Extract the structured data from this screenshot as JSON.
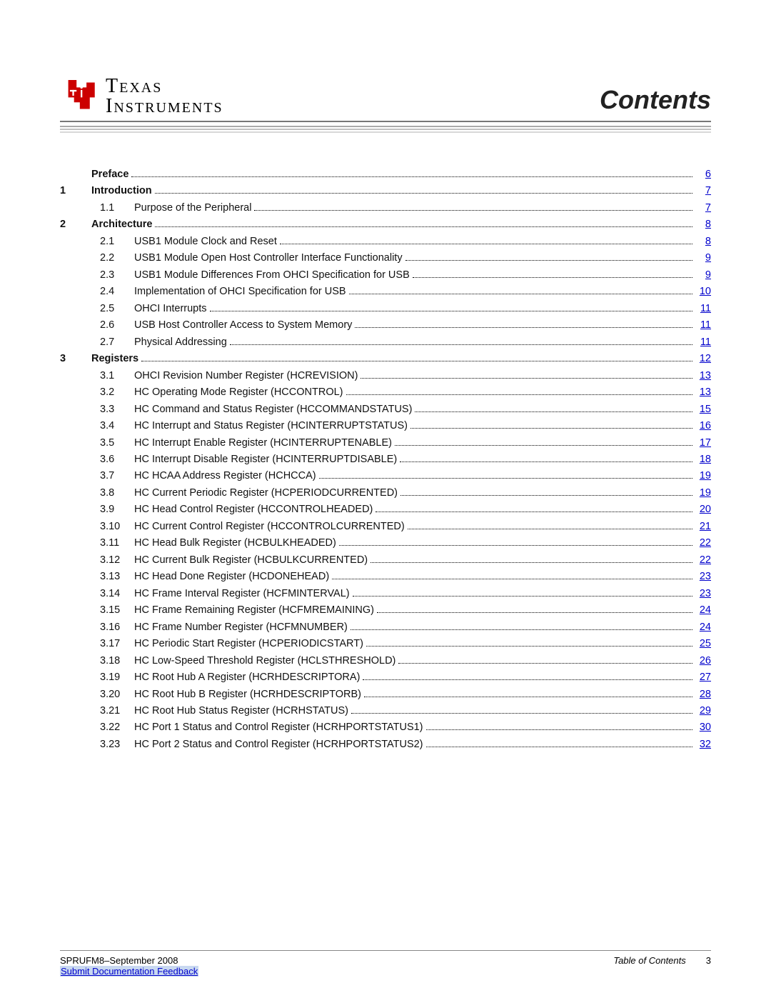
{
  "logo": {
    "texas": "Texas",
    "instruments": "Instruments",
    "icon_color": "#cc0000"
  },
  "title": "Contents",
  "toc": [
    {
      "level": 0,
      "num": "",
      "sub": "",
      "title": "Preface",
      "bold": true,
      "page": "6"
    },
    {
      "level": 0,
      "num": "1",
      "sub": "",
      "title": "Introduction",
      "bold": true,
      "page": "7"
    },
    {
      "level": 1,
      "num": "",
      "sub": "1.1",
      "title": "Purpose of the Peripheral",
      "bold": false,
      "page": "7"
    },
    {
      "level": 0,
      "num": "2",
      "sub": "",
      "title": "Architecture",
      "bold": true,
      "page": "8"
    },
    {
      "level": 1,
      "num": "",
      "sub": "2.1",
      "title": "USB1 Module Clock and Reset",
      "bold": false,
      "page": "8"
    },
    {
      "level": 1,
      "num": "",
      "sub": "2.2",
      "title": "USB1 Module Open Host Controller Interface Functionality",
      "bold": false,
      "page": "9"
    },
    {
      "level": 1,
      "num": "",
      "sub": "2.3",
      "title": "USB1 Module Differences From OHCI Specification for USB",
      "bold": false,
      "page": "9"
    },
    {
      "level": 1,
      "num": "",
      "sub": "2.4",
      "title": "Implementation of OHCI Specification for USB",
      "bold": false,
      "page": "10"
    },
    {
      "level": 1,
      "num": "",
      "sub": "2.5",
      "title": "OHCI Interrupts",
      "bold": false,
      "page": "11"
    },
    {
      "level": 1,
      "num": "",
      "sub": "2.6",
      "title": "USB Host Controller Access to System Memory",
      "bold": false,
      "page": "11"
    },
    {
      "level": 1,
      "num": "",
      "sub": "2.7",
      "title": "Physical Addressing",
      "bold": false,
      "page": "11"
    },
    {
      "level": 0,
      "num": "3",
      "sub": "",
      "title": "Registers",
      "bold": true,
      "page": "12"
    },
    {
      "level": 1,
      "num": "",
      "sub": "3.1",
      "title": "OHCI Revision Number Register (HCREVISION)",
      "bold": false,
      "page": "13"
    },
    {
      "level": 1,
      "num": "",
      "sub": "3.2",
      "title": "HC Operating Mode Register (HCCONTROL)",
      "bold": false,
      "page": "13"
    },
    {
      "level": 1,
      "num": "",
      "sub": "3.3",
      "title": "HC Command and Status Register (HCCOMMANDSTATUS)",
      "bold": false,
      "page": "15"
    },
    {
      "level": 1,
      "num": "",
      "sub": "3.4",
      "title": "HC Interrupt and Status Register (HCINTERRUPTSTATUS)",
      "bold": false,
      "page": "16"
    },
    {
      "level": 1,
      "num": "",
      "sub": "3.5",
      "title": "HC Interrupt Enable Register (HCINTERRUPTENABLE)",
      "bold": false,
      "page": "17"
    },
    {
      "level": 1,
      "num": "",
      "sub": "3.6",
      "title": "HC Interrupt Disable Register (HCINTERRUPTDISABLE)",
      "bold": false,
      "page": "18"
    },
    {
      "level": 1,
      "num": "",
      "sub": "3.7",
      "title": "HC HCAA Address Register (HCHCCA)",
      "bold": false,
      "page": "19"
    },
    {
      "level": 1,
      "num": "",
      "sub": "3.8",
      "title": "HC Current Periodic Register (HCPERIODCURRENTED)",
      "bold": false,
      "page": "19"
    },
    {
      "level": 1,
      "num": "",
      "sub": "3.9",
      "title": "HC Head Control Register (HCCONTROLHEADED)",
      "bold": false,
      "page": "20"
    },
    {
      "level": 1,
      "num": "",
      "sub": "3.10",
      "title": "HC Current Control Register (HCCONTROLCURRENTED)",
      "bold": false,
      "page": "21"
    },
    {
      "level": 1,
      "num": "",
      "sub": "3.11",
      "title": "HC Head Bulk Register (HCBULKHEADED)",
      "bold": false,
      "page": "22"
    },
    {
      "level": 1,
      "num": "",
      "sub": "3.12",
      "title": "HC Current Bulk Register (HCBULKCURRENTED)",
      "bold": false,
      "page": "22"
    },
    {
      "level": 1,
      "num": "",
      "sub": "3.13",
      "title": "HC Head Done Register (HCDONEHEAD)",
      "bold": false,
      "page": "23"
    },
    {
      "level": 1,
      "num": "",
      "sub": "3.14",
      "title": "HC Frame Interval Register (HCFMINTERVAL)",
      "bold": false,
      "page": "23"
    },
    {
      "level": 1,
      "num": "",
      "sub": "3.15",
      "title": "HC Frame Remaining Register (HCFMREMAINING)",
      "bold": false,
      "page": "24"
    },
    {
      "level": 1,
      "num": "",
      "sub": "3.16",
      "title": "HC Frame Number Register (HCFMNUMBER)",
      "bold": false,
      "page": "24"
    },
    {
      "level": 1,
      "num": "",
      "sub": "3.17",
      "title": "HC Periodic Start Register (HCPERIODICSTART)",
      "bold": false,
      "page": "25"
    },
    {
      "level": 1,
      "num": "",
      "sub": "3.18",
      "title": "HC Low-Speed Threshold Register (HCLSTHRESHOLD)",
      "bold": false,
      "page": "26"
    },
    {
      "level": 1,
      "num": "",
      "sub": "3.19",
      "title": "HC Root Hub A Register (HCRHDESCRIPTORA)",
      "bold": false,
      "page": "27"
    },
    {
      "level": 1,
      "num": "",
      "sub": "3.20",
      "title": "HC Root Hub B Register (HCRHDESCRIPTORB)",
      "bold": false,
      "page": "28"
    },
    {
      "level": 1,
      "num": "",
      "sub": "3.21",
      "title": "HC Root Hub Status Register (HCRHSTATUS)",
      "bold": false,
      "page": "29"
    },
    {
      "level": 1,
      "num": "",
      "sub": "3.22",
      "title": "HC Port 1 Status and Control Register (HCRHPORTSTATUS1)",
      "bold": false,
      "page": "30"
    },
    {
      "level": 1,
      "num": "",
      "sub": "3.23",
      "title": "HC Port 2 Status and Control Register (HCRHPORTSTATUS2)",
      "bold": false,
      "page": "32"
    }
  ],
  "footer": {
    "doc_id": "SPRUFM8–September 2008",
    "feedback": "Submit Documentation Feedback",
    "right_label": "Table of Contents",
    "page_num": "3"
  }
}
